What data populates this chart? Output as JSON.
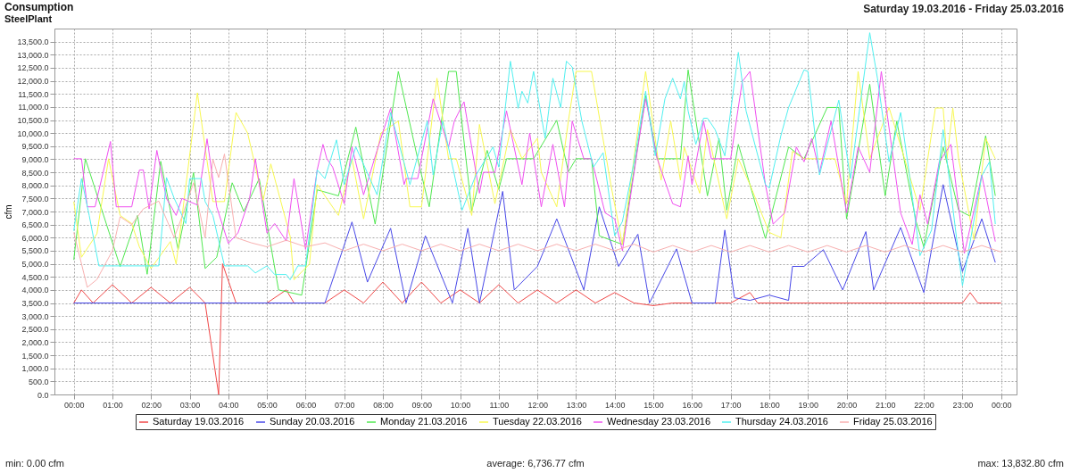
{
  "chart_data": {
    "type": "line",
    "title": "Consumption",
    "subtitle": "SteelPlant",
    "ylabel": "cfm",
    "annotations": [
      "Saturday 19.03.2016 - Friday 25.03.2016",
      "min: 0.00 cfm",
      "average: 6,736.77 cfm",
      "max: 13,832.80 cfm"
    ],
    "xlim": [
      -0.5,
      24.4
    ],
    "ylim": [
      0,
      14000
    ],
    "xticks": [
      {
        "value": 0,
        "label": "00:00"
      },
      {
        "value": 1,
        "label": "01:00"
      },
      {
        "value": 2,
        "label": "02:00"
      },
      {
        "value": 3,
        "label": "03:00"
      },
      {
        "value": 4,
        "label": "04:00"
      },
      {
        "value": 5,
        "label": "05:00"
      },
      {
        "value": 6,
        "label": "06:00"
      },
      {
        "value": 7,
        "label": "07:00"
      },
      {
        "value": 8,
        "label": "08:00"
      },
      {
        "value": 9,
        "label": "09:00"
      },
      {
        "value": 10,
        "label": "10:00"
      },
      {
        "value": 11,
        "label": "11:00"
      },
      {
        "value": 12,
        "label": "12:00"
      },
      {
        "value": 13,
        "label": "13:00"
      },
      {
        "value": 14,
        "label": "14:00"
      },
      {
        "value": 15,
        "label": "15:00"
      },
      {
        "value": 16,
        "label": "16:00"
      },
      {
        "value": 17,
        "label": "17:00"
      },
      {
        "value": 18,
        "label": "18:00"
      },
      {
        "value": 19,
        "label": "19:00"
      },
      {
        "value": 20,
        "label": "20:00"
      },
      {
        "value": 21,
        "label": "21:00"
      },
      {
        "value": 22,
        "label": "22:00"
      },
      {
        "value": 23,
        "label": "23:00"
      },
      {
        "value": 24,
        "label": "00:00"
      }
    ],
    "yticks": [
      {
        "value": 0,
        "label": "0.0"
      },
      {
        "value": 500,
        "label": "500.0"
      },
      {
        "value": 1000,
        "label": "1,000.0"
      },
      {
        "value": 1500,
        "label": "1,500.0"
      },
      {
        "value": 2000,
        "label": "2,000.0"
      },
      {
        "value": 2500,
        "label": "2,500.0"
      },
      {
        "value": 3000,
        "label": "3,000.0"
      },
      {
        "value": 3500,
        "label": "3,500.0"
      },
      {
        "value": 4000,
        "label": "4,000.0"
      },
      {
        "value": 4500,
        "label": "4,500.0"
      },
      {
        "value": 5000,
        "label": "5,000.0"
      },
      {
        "value": 5500,
        "label": "5,500.0"
      },
      {
        "value": 6000,
        "label": "6,000.0"
      },
      {
        "value": 6500,
        "label": "6,500.0"
      },
      {
        "value": 7000,
        "label": "7,000.0"
      },
      {
        "value": 7500,
        "label": "7,500.0"
      },
      {
        "value": 8000,
        "label": "8,000.0"
      },
      {
        "value": 8500,
        "label": "8,500.0"
      },
      {
        "value": 9000,
        "label": "9,000.0"
      },
      {
        "value": 9500,
        "label": "9,500.0"
      },
      {
        "value": 10000,
        "label": "10,000.0"
      },
      {
        "value": 10500,
        "label": "10,500.0"
      },
      {
        "value": 11000,
        "label": "11,000.0"
      },
      {
        "value": 11500,
        "label": "11,500.0"
      },
      {
        "value": 12000,
        "label": "12,000.0"
      },
      {
        "value": 12500,
        "label": "12,500.0"
      },
      {
        "value": 13000,
        "label": "13,000.0"
      },
      {
        "value": 13500,
        "label": "13,500.0"
      }
    ],
    "grid": true,
    "legend": "bottom",
    "line_style": "solid",
    "series": [
      {
        "name": "Saturday 19.03.2016",
        "color": "#f04848",
        "x": [
          0,
          0.2,
          0.5,
          1,
          1.5,
          2,
          2.5,
          3,
          3.4,
          3.75,
          3.85,
          4.2,
          5,
          5.5,
          5.7,
          6.5,
          7,
          7.5,
          8,
          8.5,
          9,
          9.5,
          10,
          10.5,
          11,
          11.5,
          12,
          12.5,
          13,
          13.5,
          14,
          14.5,
          15,
          15.5,
          17,
          17.5,
          17.7,
          19,
          23,
          23.2,
          23.4,
          24
        ],
        "values": [
          3500,
          4000,
          3500,
          4200,
          3500,
          4100,
          3500,
          4100,
          3500,
          0,
          5000,
          3500,
          3500,
          4000,
          3500,
          3500,
          4000,
          3500,
          4300,
          3500,
          4300,
          3500,
          4000,
          3500,
          4200,
          3500,
          4000,
          3500,
          4000,
          3500,
          3900,
          3500,
          3400,
          3500,
          3500,
          3900,
          3500,
          3500,
          3500,
          3900,
          3500,
          3500
        ]
      },
      {
        "name": "Sunday 20.03.2016",
        "color": "#4848e8",
        "x": [
          0,
          6.5,
          7.2,
          7.6,
          8.2,
          8.6,
          9.1,
          9.8,
          10.2,
          10.5,
          11.1,
          11.4,
          12.0,
          12.5,
          13.2,
          13.6,
          14.1,
          14.6,
          14.9,
          15.6,
          16.0,
          16.6,
          16.85,
          17.1,
          17.5,
          18.0,
          18.5,
          18.6,
          18.9,
          19.4,
          19.9,
          20.5,
          20.7,
          21.4,
          22.0,
          22.5,
          23.0,
          23.5,
          23.85
        ],
        "values": [
          3500,
          3500,
          6600,
          4300,
          6360,
          3500,
          6070,
          3500,
          6360,
          3500,
          7770,
          4000,
          4900,
          6720,
          4000,
          7180,
          4900,
          6130,
          3500,
          5570,
          3500,
          3500,
          6290,
          3700,
          3600,
          3800,
          3600,
          4900,
          4900,
          5540,
          4000,
          6230,
          4000,
          6390,
          3900,
          8030,
          4700,
          6720,
          5050
        ]
      },
      {
        "name": "Monday 21.03.2016",
        "color": "#50e850",
        "x": [
          0,
          0.3,
          1.2,
          1.65,
          1.9,
          2.25,
          2.7,
          3.1,
          3.4,
          3.7,
          4.1,
          4.4,
          4.8,
          5.3,
          5.9,
          6.3,
          6.85,
          7.3,
          7.8,
          8.4,
          8.9,
          9.2,
          9.7,
          9.9,
          10.3,
          10.7,
          11.0,
          11.2,
          11.9,
          12.5,
          12.8,
          13.0,
          13.4,
          13.6,
          14.2,
          14.8,
          15.1,
          15.7,
          15.9,
          16.4,
          16.7,
          16.9,
          17.2,
          17.9,
          18.5,
          18.9,
          19.5,
          19.8,
          20.0,
          20.6,
          21.0,
          21.3,
          21.8,
          22.0,
          22.5,
          22.9,
          23.2,
          23.6,
          23.85
        ],
        "values": [
          5150,
          9020,
          4890,
          6850,
          4600,
          8920,
          5540,
          8490,
          4820,
          5250,
          8100,
          7000,
          8260,
          4000,
          3800,
          7830,
          7600,
          10230,
          6520,
          12360,
          9020,
          7180,
          12360,
          12360,
          7020,
          9340,
          7840,
          9020,
          9020,
          10490,
          8520,
          9020,
          9020,
          6070,
          5740,
          11440,
          9020,
          9020,
          12420,
          7600,
          9800,
          7050,
          9570,
          5970,
          9470,
          9020,
          10980,
          10980,
          6720,
          11870,
          7600,
          10460,
          6620,
          5640,
          9470,
          7050,
          6820,
          9900,
          7600
        ]
      },
      {
        "name": "Tuesday 22.03.2016",
        "color": "#f8f850",
        "x": [
          0,
          0.2,
          0.6,
          0.9,
          1.2,
          1.5,
          1.7,
          2.0,
          2.5,
          2.65,
          3.2,
          3.6,
          3.9,
          4.2,
          4.5,
          4.9,
          5.1,
          5.6,
          5.7,
          6.1,
          6.3,
          6.85,
          7.2,
          7.5,
          7.95,
          8.4,
          8.7,
          9.0,
          9.4,
          9.7,
          9.9,
          10.3,
          10.5,
          10.9,
          11.3,
          11.6,
          12.0,
          12.1,
          12.5,
          12.8,
          13.0,
          13.4,
          13.9,
          14.2,
          14.8,
          15.2,
          15.45,
          15.7,
          15.8,
          16.2,
          16.4,
          16.9,
          17.2,
          17.5,
          18.0,
          18.3,
          18.6,
          18.9,
          19.7,
          20.0,
          20.3,
          20.6,
          21.1,
          21.5,
          21.9,
          22.3,
          22.5,
          22.6,
          22.75,
          22.9,
          23.3,
          23.6,
          23.85
        ],
        "values": [
          7380,
          5250,
          6150,
          9020,
          6850,
          6540,
          5640,
          4820,
          5850,
          4990,
          11540,
          7380,
          7380,
          10790,
          10000,
          7430,
          8820,
          6050,
          4390,
          4990,
          8030,
          6850,
          9020,
          6720,
          10000,
          10460,
          7180,
          7180,
          12100,
          9020,
          9020,
          6850,
          10330,
          7300,
          10130,
          9020,
          9800,
          8500,
          7180,
          10460,
          12360,
          12360,
          8030,
          5740,
          12360,
          8200,
          10460,
          8200,
          9460,
          7700,
          10130,
          6720,
          9020,
          8030,
          6200,
          6000,
          9300,
          9020,
          9020,
          7300,
          12360,
          9020,
          10980,
          9020,
          7050,
          10960,
          10960,
          9020,
          10960,
          9020,
          5910,
          9800,
          9020
        ]
      },
      {
        "name": "Wednesday 23.03.2016",
        "color": "#f050f0",
        "x": [
          0,
          0.2,
          0.35,
          0.55,
          0.95,
          1.1,
          1.5,
          1.7,
          1.8,
          1.95,
          2.15,
          2.4,
          2.65,
          2.8,
          3.2,
          3.45,
          3.7,
          4.0,
          4.25,
          4.55,
          4.7,
          5.0,
          5.2,
          5.5,
          5.7,
          6.0,
          6.3,
          6.45,
          6.55,
          6.7,
          7.0,
          7.2,
          7.5,
          7.85,
          8.2,
          8.55,
          8.6,
          8.9,
          9.3,
          9.7,
          9.85,
          10.1,
          10.5,
          10.6,
          10.9,
          11.2,
          11.6,
          11.8,
          12.1,
          12.4,
          12.7,
          12.9,
          13.2,
          13.4,
          13.75,
          14.0,
          14.2,
          14.6,
          14.8,
          15.1,
          15.5,
          15.7,
          15.9,
          16.0,
          16.3,
          16.5,
          17.0,
          17.3,
          17.5,
          17.9,
          18.1,
          18.4,
          18.7,
          18.9,
          19.1,
          19.3,
          19.6,
          20.0,
          20.3,
          20.6,
          20.9,
          21.4,
          21.7,
          21.9,
          22.1,
          22.4,
          22.7,
          23.05,
          23.25,
          23.5,
          23.85
        ],
        "values": [
          9020,
          9020,
          7180,
          7180,
          9680,
          7180,
          7180,
          8590,
          8590,
          7100,
          9340,
          7500,
          6850,
          7500,
          7250,
          9780,
          7180,
          5780,
          6180,
          7500,
          9020,
          6180,
          6540,
          5870,
          8260,
          5550,
          8590,
          9570,
          9020,
          8700,
          7300,
          9470,
          7640,
          9340,
          10950,
          8030,
          8260,
          8260,
          11310,
          9470,
          10460,
          11200,
          7700,
          8500,
          8500,
          10850,
          8030,
          10000,
          7180,
          9570,
          7180,
          10460,
          9020,
          9020,
          6950,
          6720,
          5500,
          9470,
          11310,
          9020,
          7300,
          7180,
          9130,
          8030,
          10460,
          9020,
          9020,
          11970,
          12360,
          8030,
          6520,
          6950,
          9470,
          8900,
          9800,
          8500,
          10460,
          6950,
          9470,
          8500,
          12360,
          6950,
          5740,
          7640,
          6520,
          8900,
          9570,
          5400,
          6720,
          8400,
          5850
        ]
      },
      {
        "name": "Thursday 24.03.2016",
        "color": "#50f0f0",
        "x": [
          0,
          0.2,
          0.4,
          0.65,
          1.95,
          2.2,
          2.4,
          2.6,
          2.9,
          3.0,
          3.3,
          3.4,
          3.6,
          3.9,
          4.5,
          4.7,
          5.0,
          5.2,
          5.5,
          5.6,
          5.8,
          6.0,
          6.3,
          6.5,
          6.8,
          7.0,
          7.3,
          7.85,
          8.2,
          8.7,
          9.15,
          9.3,
          9.55,
          10.05,
          10.4,
          10.85,
          11.0,
          11.3,
          11.5,
          11.6,
          11.75,
          11.9,
          12.2,
          12.4,
          12.6,
          12.75,
          12.9,
          13.15,
          13.45,
          13.7,
          14.0,
          14.2,
          14.5,
          14.8,
          15.05,
          15.3,
          15.5,
          15.7,
          15.8,
          15.9,
          16.1,
          16.3,
          16.4,
          16.6,
          16.85,
          17.2,
          17.4,
          17.9,
          18.0,
          18.3,
          18.5,
          18.9,
          19.0,
          19.3,
          19.8,
          20.1,
          20.6,
          20.8,
          21.1,
          21.4,
          21.6,
          21.9,
          22.2,
          22.5,
          23.0,
          23.5,
          23.7,
          23.85
        ],
        "values": [
          6260,
          8260,
          6850,
          4920,
          4920,
          4920,
          8300,
          7500,
          6540,
          8260,
          8260,
          7380,
          6850,
          4920,
          4920,
          4650,
          4920,
          4590,
          4590,
          4390,
          4920,
          4920,
          8590,
          8260,
          9740,
          8030,
          9470,
          7640,
          10790,
          8030,
          10460,
          8400,
          10460,
          7050,
          8370,
          9470,
          8700,
          12750,
          10950,
          11600,
          11150,
          12360,
          9800,
          12100,
          10980,
          12750,
          12530,
          10460,
          8700,
          9250,
          6070,
          6620,
          8900,
          11600,
          9130,
          11310,
          12100,
          11310,
          11970,
          10850,
          9570,
          10570,
          10570,
          10130,
          9130,
          13090,
          10850,
          8030,
          7900,
          9900,
          10980,
          12420,
          12360,
          8400,
          11260,
          8260,
          13840,
          12100,
          8900,
          10790,
          8700,
          5310,
          6290,
          10130,
          4160,
          8370,
          8900,
          6520
        ]
      },
      {
        "name": "Friday 25.03.2016",
        "color": "#f8b0b0",
        "x": [
          0,
          0.35,
          0.6,
          1.0,
          1.2,
          1.5,
          1.8,
          2.2,
          2.6,
          2.8,
          3.1,
          3.4,
          3.6,
          3.75,
          3.9,
          4.2,
          4.6,
          5,
          5.5,
          6,
          6.5,
          7,
          7.5,
          8,
          8.5,
          9,
          9.5,
          10,
          10.5,
          11,
          11.5,
          12,
          12.5,
          13,
          13.5,
          14,
          14.5,
          15,
          15.5,
          16,
          16.5,
          17,
          17.5,
          18,
          18.5,
          19,
          19.5,
          20,
          20.5,
          21,
          21.5,
          22,
          22.5,
          23,
          23.5,
          24
        ],
        "values": [
          6200,
          4100,
          4400,
          5500,
          6800,
          6500,
          7100,
          7400,
          6000,
          6800,
          8100,
          6000,
          9000,
          8300,
          9200,
          6000,
          5800,
          5650,
          5900,
          5650,
          5800,
          5500,
          5750,
          5500,
          5750,
          5500,
          5750,
          5500,
          5750,
          5500,
          5750,
          5500,
          5750,
          5500,
          5750,
          5500,
          5750,
          5450,
          5700,
          5450,
          5700,
          5450,
          5700,
          5450,
          5700,
          5450,
          5700,
          5450,
          5700,
          5450,
          5700,
          5450,
          5700,
          5450,
          5700,
          5450
        ]
      }
    ]
  }
}
